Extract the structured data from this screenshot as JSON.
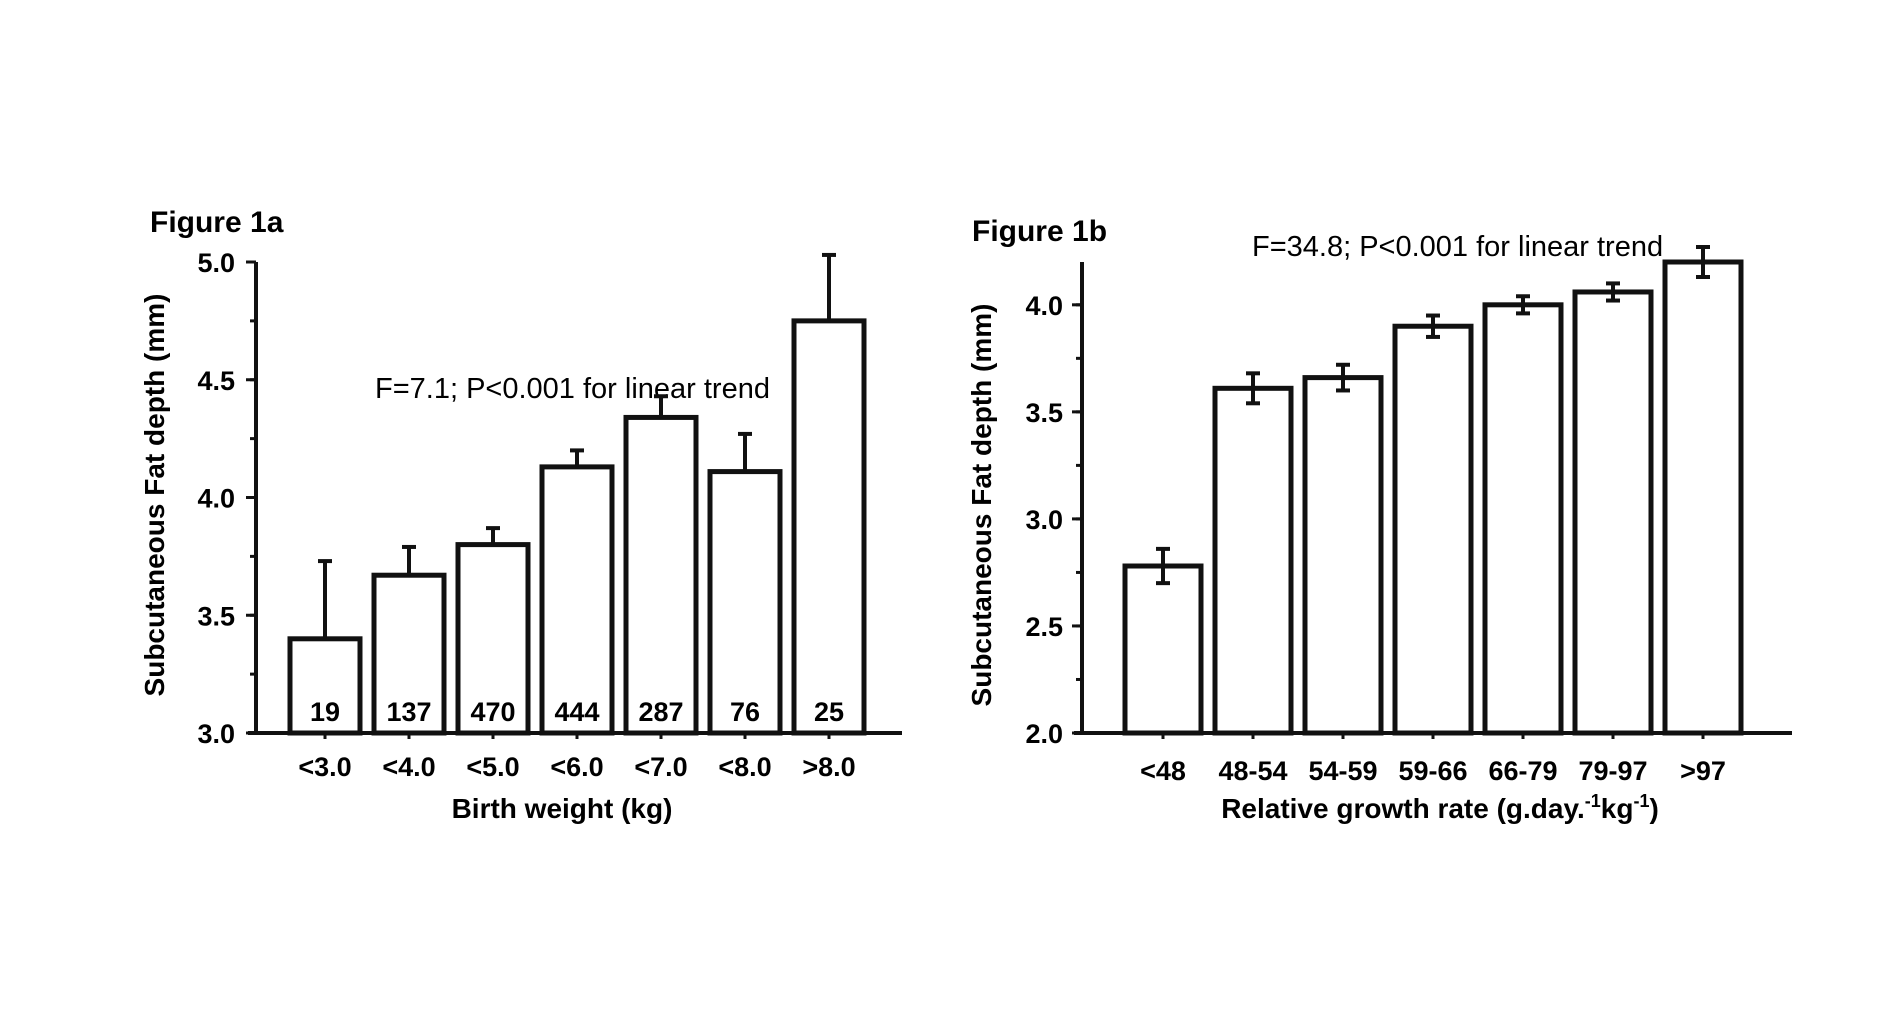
{
  "chart_data": [
    {
      "type": "bar",
      "panel_label": "Figure 1a",
      "annotation": "F=7.1; P<0.001 for linear trend",
      "xlabel": "Birth weight (kg)",
      "ylabel": "Subcutaneous Fat depth (mm)",
      "categories": [
        "<3.0",
        "<4.0",
        "<5.0",
        "<6.0",
        "<7.0",
        "<8.0",
        ">8.0"
      ],
      "values": [
        3.4,
        3.67,
        3.8,
        4.13,
        4.34,
        4.11,
        4.75
      ],
      "errors": [
        0.33,
        0.12,
        0.07,
        0.07,
        0.09,
        0.16,
        0.28
      ],
      "error_style": "upper",
      "n_labels": [
        "19",
        "137",
        "470",
        "444",
        "287",
        "76",
        "25"
      ],
      "ylim": [
        3.0,
        5.0
      ],
      "yticks": [
        "3.0",
        "3.5",
        "4.0",
        "4.5",
        "5.0"
      ],
      "ytick_values": [
        3.0,
        3.5,
        4.0,
        4.5,
        5.0
      ],
      "grid": false,
      "legend": "none"
    },
    {
      "type": "bar",
      "panel_label": "Figure 1b",
      "annotation": "F=34.8; P<0.001 for linear trend",
      "xlabel_main": "Relative growth rate (g.day.",
      "xlabel_sup1": "-1",
      "xlabel_mid": "kg",
      "xlabel_sup2": "-1",
      "xlabel_end": ")",
      "ylabel": "Subcutaneous Fat depth (mm)",
      "categories": [
        "<48",
        "48-54",
        "54-59",
        "59-66",
        "66-79",
        "79-97",
        ">97"
      ],
      "values": [
        2.78,
        3.61,
        3.66,
        3.9,
        4.0,
        4.06,
        4.2
      ],
      "errors": [
        0.08,
        0.07,
        0.06,
        0.05,
        0.04,
        0.04,
        0.07
      ],
      "error_style": "both",
      "ylim": [
        2.0,
        4.2
      ],
      "yticks": [
        "2.0",
        "2.5",
        "3.0",
        "3.5",
        "4.0"
      ],
      "ytick_values": [
        2.0,
        2.5,
        3.0,
        3.5,
        4.0
      ],
      "grid": false,
      "legend": "none"
    }
  ]
}
